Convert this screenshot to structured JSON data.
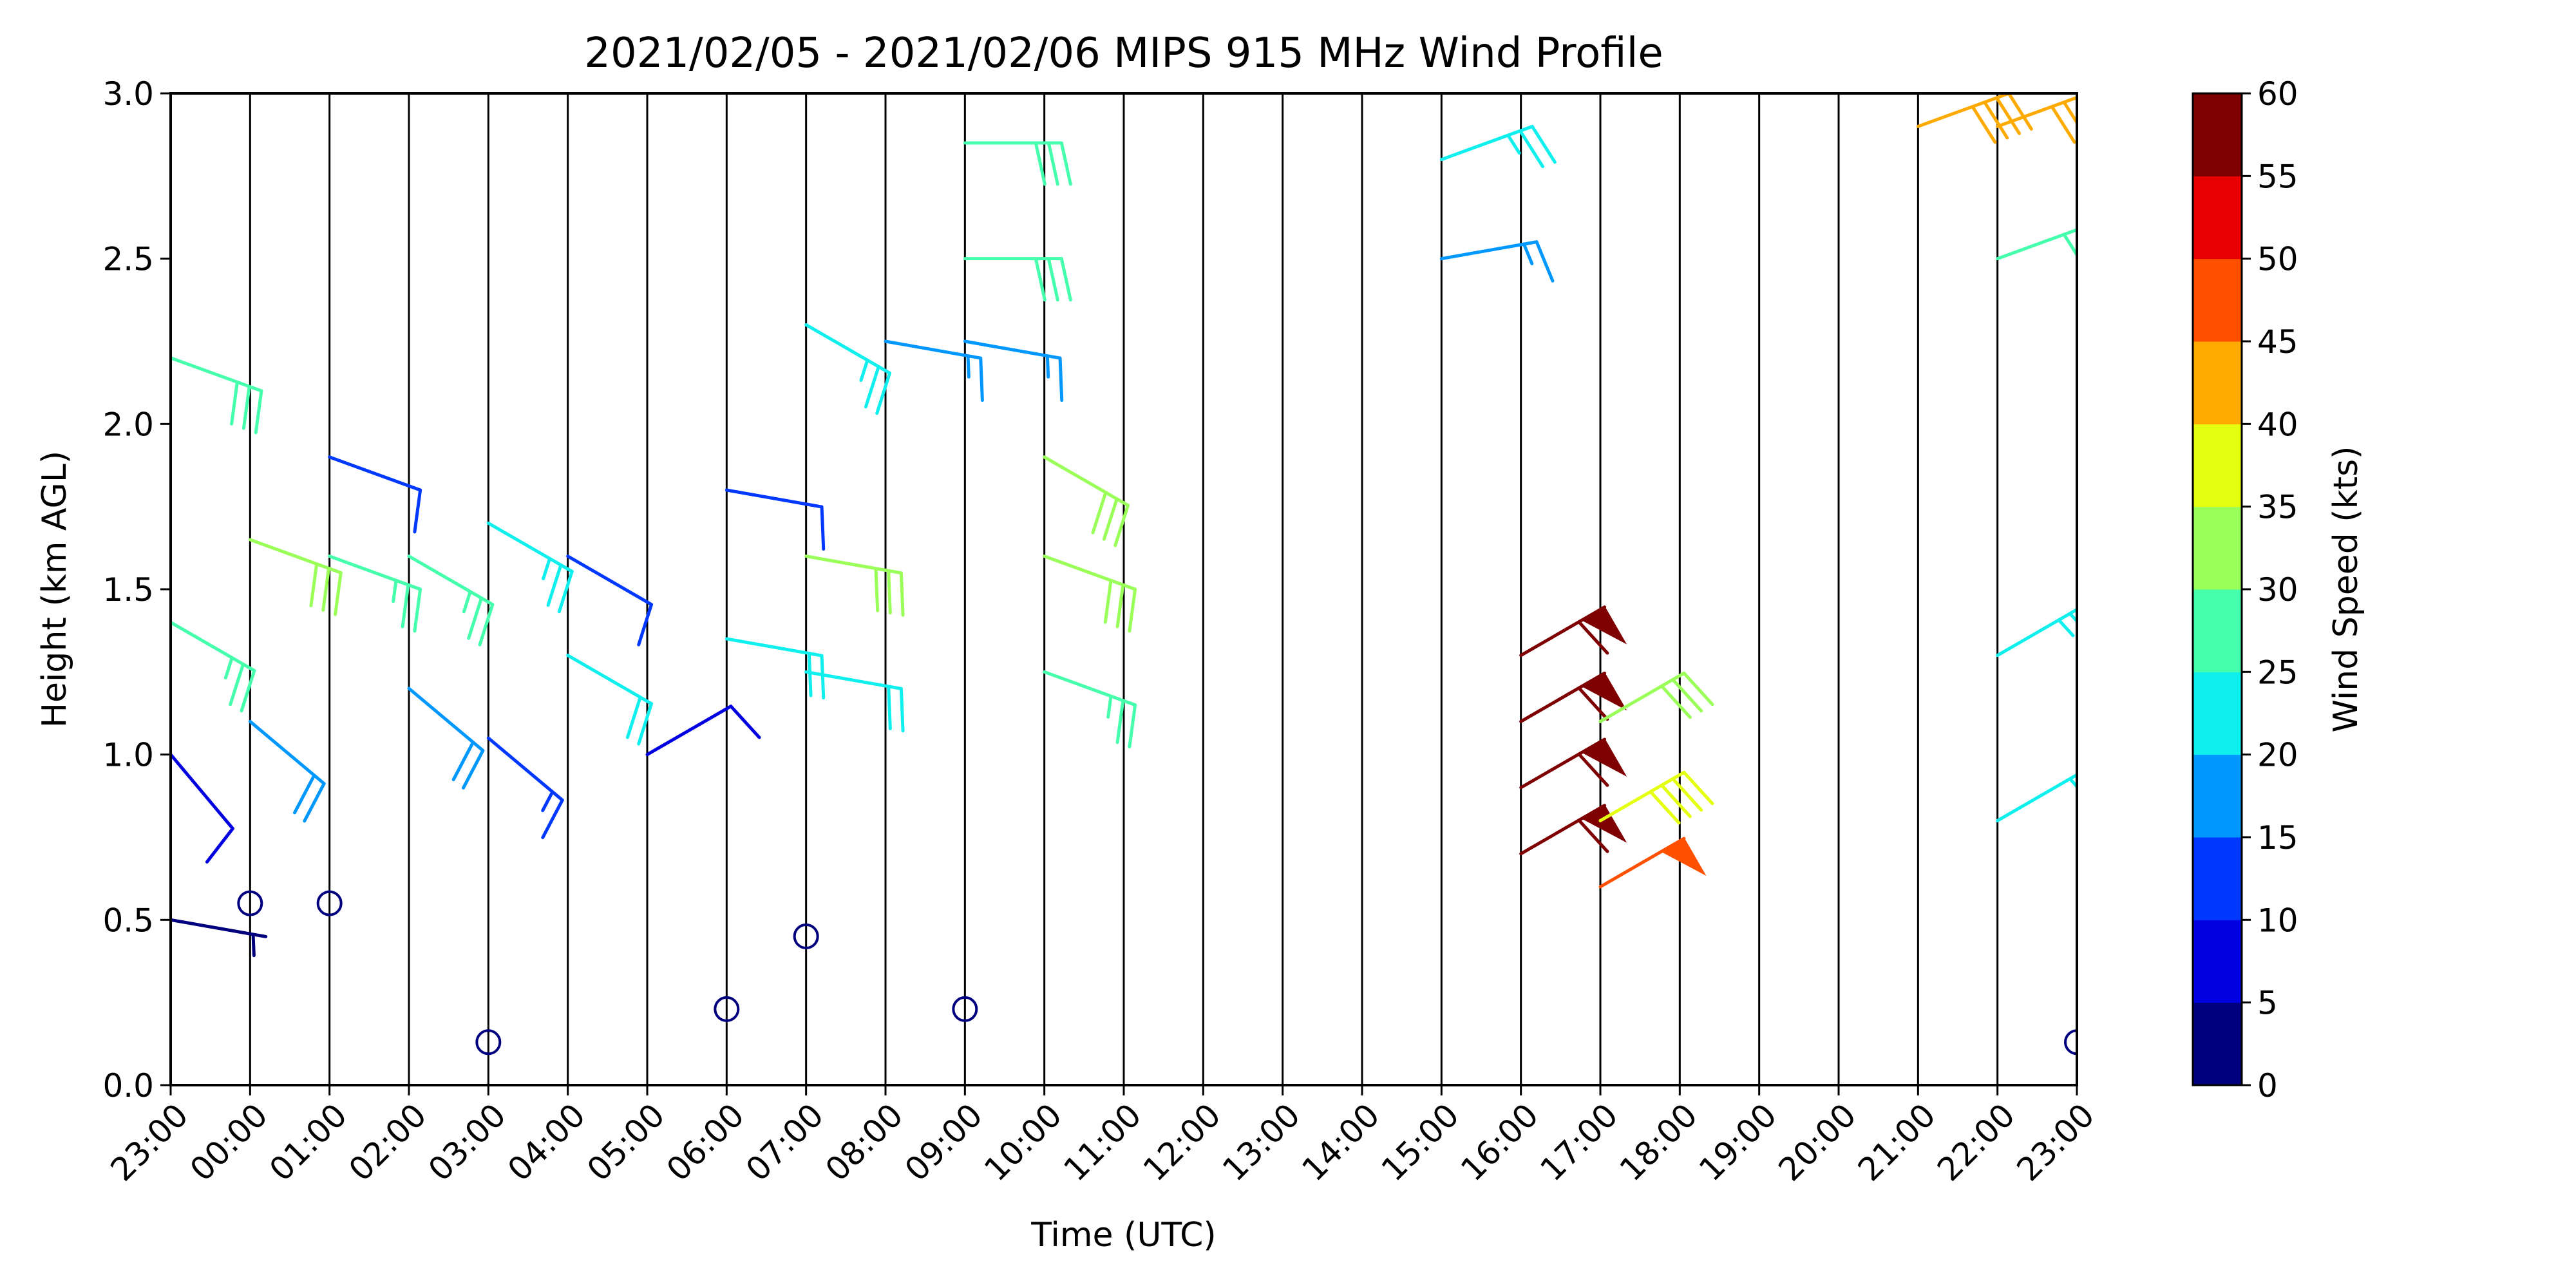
{
  "chart_data": {
    "type": "wind_barb_time_height",
    "title": "2021/02/05 - 2021/02/06 MIPS 915 MHz Wind Profile",
    "xlabel": "Time (UTC)",
    "ylabel": "Height (km AGL)",
    "colorbar_label": "Wind Speed (kts)",
    "x_ticks": [
      "23:00",
      "00:00",
      "01:00",
      "02:00",
      "03:00",
      "04:00",
      "05:00",
      "06:00",
      "07:00",
      "08:00",
      "09:00",
      "10:00",
      "11:00",
      "12:00",
      "13:00",
      "14:00",
      "15:00",
      "16:00",
      "17:00",
      "18:00",
      "19:00",
      "20:00",
      "21:00",
      "22:00",
      "23:00"
    ],
    "y_ticks": [
      "0.0",
      "0.5",
      "1.0",
      "1.5",
      "2.0",
      "2.5",
      "3.0"
    ],
    "ylim": [
      0,
      3.0
    ],
    "x_range_hours": [
      0,
      24
    ],
    "colorbar_ticks": [
      "0",
      "5",
      "10",
      "15",
      "20",
      "25",
      "30",
      "35",
      "40",
      "45",
      "50",
      "55",
      "60"
    ],
    "colorbar_colors": [
      "#00007f",
      "#0000e0",
      "#0038ff",
      "#0098ff",
      "#0ff0ee",
      "#46ffad",
      "#9bff5a",
      "#e5ff10",
      "#ffaa00",
      "#ff5000",
      "#e80000",
      "#7f0000"
    ],
    "grid": "vertical lines at each hour",
    "calm_markers": [
      {
        "time": "00:00",
        "height_km": 0.55
      },
      {
        "time": "01:00",
        "height_km": 0.55
      },
      {
        "time": "03:00",
        "height_km": 0.13
      },
      {
        "time": "06:00",
        "height_km": 0.23
      },
      {
        "time": "07:00",
        "height_km": 0.45
      },
      {
        "time": "09:00",
        "height_km": 0.23
      },
      {
        "time": "23:00",
        "height_km": 0.13
      }
    ],
    "wind_barbs": [
      {
        "time": "23:00",
        "height_km": 2.2,
        "speed_kts": 28,
        "direction_deg": 290
      },
      {
        "time": "23:00",
        "height_km": 1.4,
        "speed_kts": 26,
        "direction_deg": 300
      },
      {
        "time": "23:00",
        "height_km": 1.0,
        "speed_kts": 8,
        "direction_deg": 320
      },
      {
        "time": "23:00",
        "height_km": 0.5,
        "speed_kts": 3,
        "direction_deg": 280
      },
      {
        "time": "00:00",
        "height_km": 1.65,
        "speed_kts": 30,
        "direction_deg": 290
      },
      {
        "time": "00:00",
        "height_km": 1.1,
        "speed_kts": 18,
        "direction_deg": 310
      },
      {
        "time": "01:00",
        "height_km": 1.9,
        "speed_kts": 12,
        "direction_deg": 290
      },
      {
        "time": "01:00",
        "height_km": 1.6,
        "speed_kts": 26,
        "direction_deg": 290
      },
      {
        "time": "02:00",
        "height_km": 1.6,
        "speed_kts": 26,
        "direction_deg": 300
      },
      {
        "time": "02:00",
        "height_km": 1.2,
        "speed_kts": 18,
        "direction_deg": 310
      },
      {
        "time": "03:00",
        "height_km": 1.7,
        "speed_kts": 24,
        "direction_deg": 300
      },
      {
        "time": "03:00",
        "height_km": 1.05,
        "speed_kts": 14,
        "direction_deg": 310
      },
      {
        "time": "04:00",
        "height_km": 1.6,
        "speed_kts": 12,
        "direction_deg": 300
      },
      {
        "time": "04:00",
        "height_km": 1.3,
        "speed_kts": 20,
        "direction_deg": 300
      },
      {
        "time": "05:00",
        "height_km": 1.0,
        "speed_kts": 8,
        "direction_deg": 240
      },
      {
        "time": "06:00",
        "height_km": 1.8,
        "speed_kts": 12,
        "direction_deg": 280
      },
      {
        "time": "06:00",
        "height_km": 1.35,
        "speed_kts": 22,
        "direction_deg": 280
      },
      {
        "time": "07:00",
        "height_km": 2.3,
        "speed_kts": 24,
        "direction_deg": 300
      },
      {
        "time": "07:00",
        "height_km": 1.6,
        "speed_kts": 30,
        "direction_deg": 280
      },
      {
        "time": "07:00",
        "height_km": 1.25,
        "speed_kts": 20,
        "direction_deg": 280
      },
      {
        "time": "08:00",
        "height_km": 2.25,
        "speed_kts": 16,
        "direction_deg": 280
      },
      {
        "time": "09:00",
        "height_km": 2.85,
        "speed_kts": 28,
        "direction_deg": 270
      },
      {
        "time": "09:00",
        "height_km": 2.5,
        "speed_kts": 28,
        "direction_deg": 270
      },
      {
        "time": "09:00",
        "height_km": 2.25,
        "speed_kts": 16,
        "direction_deg": 280
      },
      {
        "time": "10:00",
        "height_km": 1.9,
        "speed_kts": 32,
        "direction_deg": 300
      },
      {
        "time": "10:00",
        "height_km": 1.6,
        "speed_kts": 30,
        "direction_deg": 290
      },
      {
        "time": "10:00",
        "height_km": 1.25,
        "speed_kts": 26,
        "direction_deg": 290
      },
      {
        "time": "15:00",
        "height_km": 2.8,
        "speed_kts": 24,
        "direction_deg": 250
      },
      {
        "time": "15:00",
        "height_km": 2.5,
        "speed_kts": 16,
        "direction_deg": 260
      },
      {
        "time": "16:00",
        "height_km": 1.3,
        "speed_kts": 60,
        "direction_deg": 240
      },
      {
        "time": "16:00",
        "height_km": 1.1,
        "speed_kts": 60,
        "direction_deg": 240
      },
      {
        "time": "16:00",
        "height_km": 0.9,
        "speed_kts": 60,
        "direction_deg": 240
      },
      {
        "time": "16:00",
        "height_km": 0.7,
        "speed_kts": 60,
        "direction_deg": 240
      },
      {
        "time": "17:00",
        "height_km": 1.1,
        "speed_kts": 32,
        "direction_deg": 240
      },
      {
        "time": "17:00",
        "height_km": 0.8,
        "speed_kts": 38,
        "direction_deg": 240
      },
      {
        "time": "17:00",
        "height_km": 0.6,
        "speed_kts": 48,
        "direction_deg": 240
      },
      {
        "time": "21:00",
        "height_km": 2.9,
        "speed_kts": 42,
        "direction_deg": 250
      },
      {
        "time": "22:00",
        "height_km": 2.9,
        "speed_kts": 42,
        "direction_deg": 250
      },
      {
        "time": "22:00",
        "height_km": 2.5,
        "speed_kts": 28,
        "direction_deg": 250
      },
      {
        "time": "22:00",
        "height_km": 1.3,
        "speed_kts": 24,
        "direction_deg": 240
      },
      {
        "time": "22:00",
        "height_km": 0.8,
        "speed_kts": 22,
        "direction_deg": 240
      }
    ]
  }
}
